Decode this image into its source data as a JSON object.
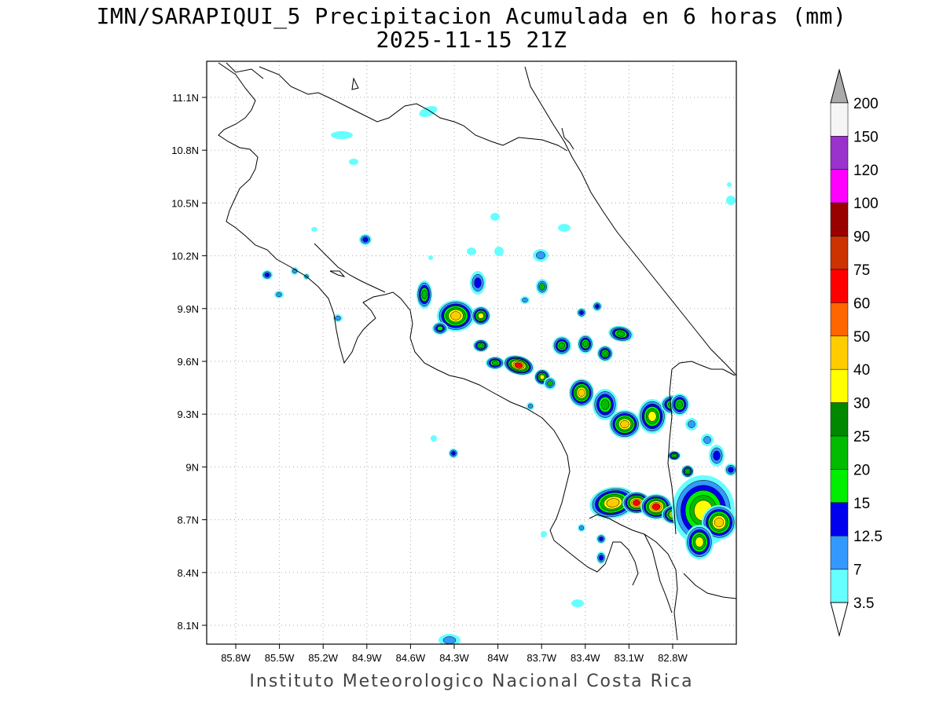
{
  "title_line1": "IMN/SARAPIQUI_5 Precipitacion Acumulada en 6 horas (mm)",
  "title_line2": "2025-11-15 21Z",
  "credit": "Instituto Meteorologico Nacional Costa Rica",
  "map": {
    "lon_range": [
      -86.1,
      -83.1
    ],
    "lat_range": [
      8.0,
      11.3
    ],
    "lon_ticks": [
      "85.8W",
      "85.5W",
      "85.2W",
      "84.9W",
      "84.6W",
      "84.3W",
      "84W",
      "83.7W",
      "83.4W",
      "83.1W",
      "82.8W"
    ],
    "lat_ticks": [
      "11.1N",
      "10.8N",
      "10.5N",
      "10.2N",
      "9.9N",
      "9.6N",
      "9.3N",
      "9N",
      "8.7N",
      "8.4N",
      "8.1N"
    ],
    "grid": "dotted"
  },
  "colorbar": {
    "labels": [
      "200",
      "150",
      "120",
      "100",
      "90",
      "75",
      "60",
      "50",
      "40",
      "30",
      "25",
      "20",
      "15",
      "12.5",
      "7",
      "3.5"
    ],
    "colors": [
      "#f5f5f5",
      "#9933cc",
      "#ff00ff",
      "#990000",
      "#cc3300",
      "#ff0000",
      "#ff6600",
      "#ffcc00",
      "#ffff00",
      "#008800",
      "#00bb00",
      "#00ee00",
      "#0000ee",
      "#3399ff",
      "#66ffff"
    ],
    "top_arrow_color": "#aaaaaa",
    "bottom_arrow_color": "#ffffff"
  }
}
